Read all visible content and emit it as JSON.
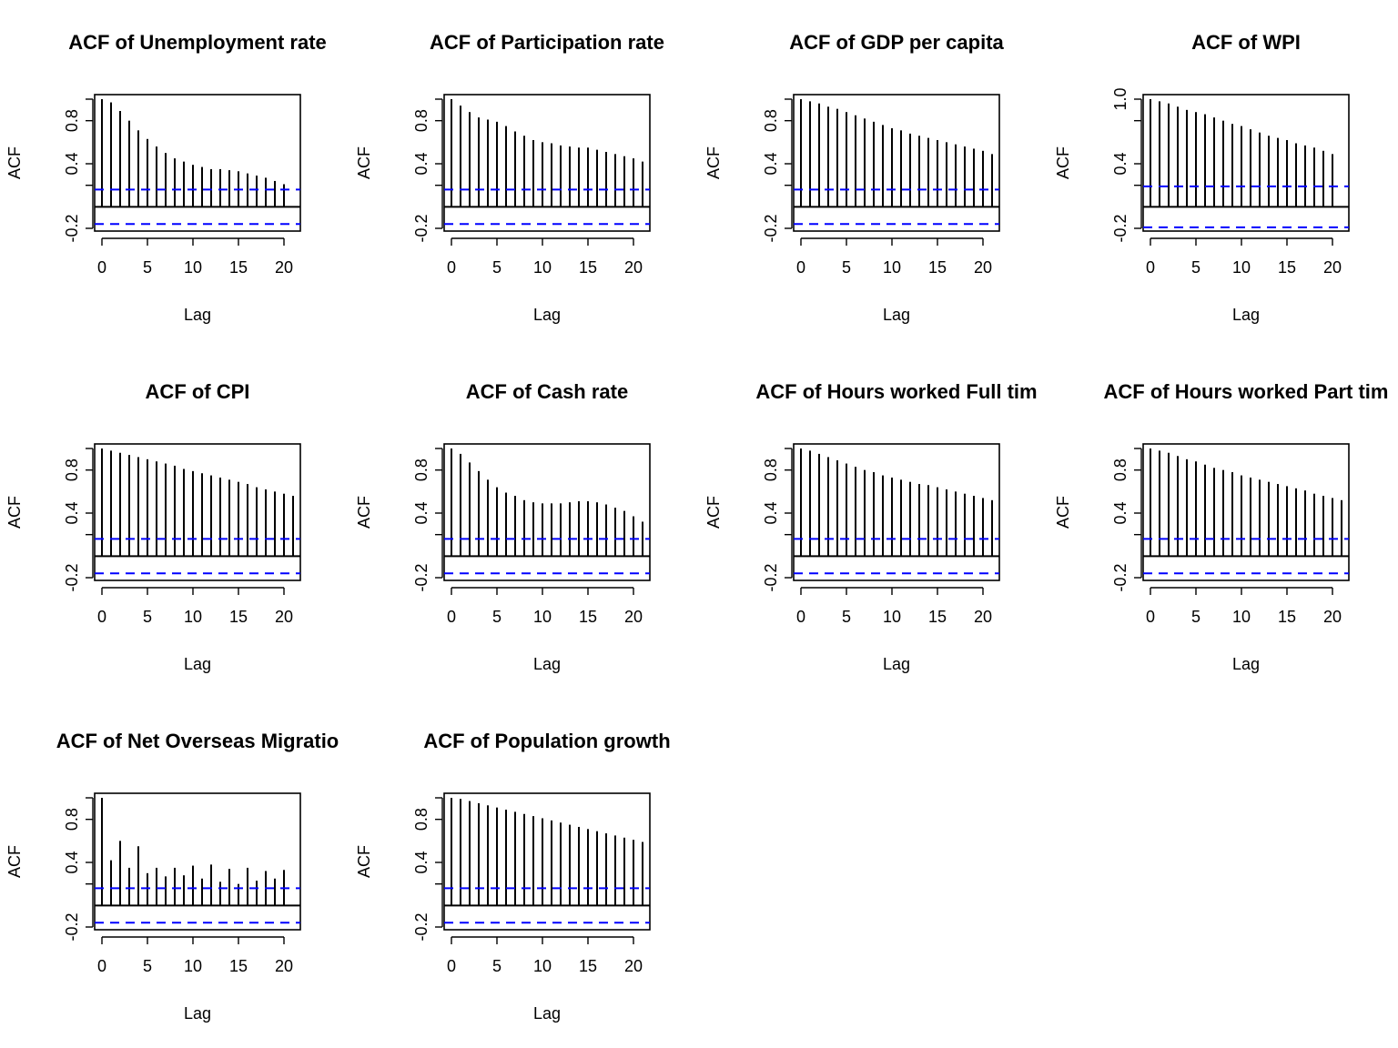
{
  "chart_data": [
    {
      "type": "bar",
      "title": "ACF of Unemployment rate",
      "xlabel": "Lag",
      "ylabel": "ACF",
      "x": [
        0,
        1,
        2,
        3,
        4,
        5,
        6,
        7,
        8,
        9,
        10,
        11,
        12,
        13,
        14,
        15,
        16,
        17,
        18,
        19,
        20
      ],
      "values": [
        1.0,
        0.97,
        0.89,
        0.8,
        0.71,
        0.63,
        0.56,
        0.5,
        0.45,
        0.42,
        0.39,
        0.37,
        0.35,
        0.35,
        0.34,
        0.33,
        0.31,
        0.29,
        0.27,
        0.24,
        0.21
      ],
      "ci": 0.16,
      "ylim": [
        -0.2,
        1.0
      ],
      "yticks": [
        "-0.2",
        "0.4",
        "0.8"
      ],
      "xticks": [
        "0",
        "5",
        "10",
        "15",
        "20"
      ]
    },
    {
      "type": "bar",
      "title": "ACF of Participation rate",
      "xlabel": "Lag",
      "ylabel": "ACF",
      "x": [
        0,
        1,
        2,
        3,
        4,
        5,
        6,
        7,
        8,
        9,
        10,
        11,
        12,
        13,
        14,
        15,
        16,
        17,
        18,
        19,
        20,
        21
      ],
      "values": [
        1.0,
        0.94,
        0.88,
        0.83,
        0.81,
        0.79,
        0.75,
        0.7,
        0.66,
        0.62,
        0.6,
        0.59,
        0.57,
        0.56,
        0.55,
        0.55,
        0.53,
        0.51,
        0.49,
        0.47,
        0.45,
        0.42
      ],
      "ci": 0.16,
      "ylim": [
        -0.2,
        1.0
      ],
      "yticks": [
        "-0.2",
        "0.4",
        "0.8"
      ],
      "xticks": [
        "0",
        "5",
        "10",
        "15",
        "20"
      ]
    },
    {
      "type": "bar",
      "title": "ACF of GDP per capita",
      "xlabel": "Lag",
      "ylabel": "ACF",
      "x": [
        0,
        1,
        2,
        3,
        4,
        5,
        6,
        7,
        8,
        9,
        10,
        11,
        12,
        13,
        14,
        15,
        16,
        17,
        18,
        19,
        20,
        21
      ],
      "values": [
        1.0,
        0.98,
        0.96,
        0.93,
        0.91,
        0.88,
        0.85,
        0.82,
        0.79,
        0.76,
        0.73,
        0.71,
        0.68,
        0.66,
        0.64,
        0.62,
        0.6,
        0.58,
        0.56,
        0.54,
        0.52,
        0.49
      ],
      "ci": 0.16,
      "ylim": [
        -0.2,
        1.0
      ],
      "yticks": [
        "-0.2",
        "0.4",
        "0.8"
      ],
      "xticks": [
        "0",
        "5",
        "10",
        "15",
        "20"
      ]
    },
    {
      "type": "bar",
      "title": "ACF of WPI",
      "xlabel": "Lag",
      "ylabel": "ACF",
      "x": [
        0,
        1,
        2,
        3,
        4,
        5,
        6,
        7,
        8,
        9,
        10,
        11,
        12,
        13,
        14,
        15,
        16,
        17,
        18,
        19,
        20
      ],
      "values": [
        1.0,
        0.98,
        0.96,
        0.93,
        0.9,
        0.88,
        0.86,
        0.83,
        0.8,
        0.77,
        0.75,
        0.72,
        0.69,
        0.66,
        0.64,
        0.62,
        0.59,
        0.57,
        0.55,
        0.52,
        0.49
      ],
      "ci": 0.19,
      "ylim": [
        -0.2,
        1.0
      ],
      "yticks": [
        "-0.2",
        "0.4",
        "1.0"
      ],
      "xticks": [
        "0",
        "5",
        "10",
        "15",
        "20"
      ]
    },
    {
      "type": "bar",
      "title": "ACF of CPI",
      "xlabel": "Lag",
      "ylabel": "ACF",
      "x": [
        0,
        1,
        2,
        3,
        4,
        5,
        6,
        7,
        8,
        9,
        10,
        11,
        12,
        13,
        14,
        15,
        16,
        17,
        18,
        19,
        20,
        21
      ],
      "values": [
        1.0,
        0.98,
        0.96,
        0.94,
        0.92,
        0.9,
        0.88,
        0.86,
        0.84,
        0.81,
        0.79,
        0.77,
        0.75,
        0.73,
        0.71,
        0.69,
        0.67,
        0.64,
        0.62,
        0.6,
        0.58,
        0.56
      ],
      "ci": 0.16,
      "ylim": [
        -0.2,
        1.0
      ],
      "yticks": [
        "-0.2",
        "0.4",
        "0.8"
      ],
      "xticks": [
        "0",
        "5",
        "10",
        "15",
        "20"
      ]
    },
    {
      "type": "bar",
      "title": "ACF of Cash rate",
      "xlabel": "Lag",
      "ylabel": "ACF",
      "x": [
        0,
        1,
        2,
        3,
        4,
        5,
        6,
        7,
        8,
        9,
        10,
        11,
        12,
        13,
        14,
        15,
        16,
        17,
        18,
        19,
        20,
        21
      ],
      "values": [
        1.0,
        0.95,
        0.87,
        0.79,
        0.71,
        0.64,
        0.59,
        0.56,
        0.52,
        0.5,
        0.49,
        0.49,
        0.49,
        0.5,
        0.51,
        0.51,
        0.5,
        0.48,
        0.45,
        0.42,
        0.37,
        0.32
      ],
      "ci": 0.16,
      "ylim": [
        -0.2,
        1.0
      ],
      "yticks": [
        "-0.2",
        "0.4",
        "0.8"
      ],
      "xticks": [
        "0",
        "5",
        "10",
        "15",
        "20"
      ]
    },
    {
      "type": "bar",
      "title": "ACF of Hours worked Full tim",
      "xlabel": "Lag",
      "ylabel": "ACF",
      "x": [
        0,
        1,
        2,
        3,
        4,
        5,
        6,
        7,
        8,
        9,
        10,
        11,
        12,
        13,
        14,
        15,
        16,
        17,
        18,
        19,
        20,
        21
      ],
      "values": [
        1.0,
        0.98,
        0.95,
        0.92,
        0.89,
        0.86,
        0.83,
        0.8,
        0.78,
        0.75,
        0.73,
        0.71,
        0.69,
        0.67,
        0.66,
        0.64,
        0.62,
        0.6,
        0.58,
        0.56,
        0.54,
        0.52
      ],
      "ci": 0.16,
      "ylim": [
        -0.2,
        1.0
      ],
      "yticks": [
        "-0.2",
        "0.4",
        "0.8"
      ],
      "xticks": [
        "0",
        "5",
        "10",
        "15",
        "20"
      ]
    },
    {
      "type": "bar",
      "title": "ACF of Hours worked Part tim",
      "xlabel": "Lag",
      "ylabel": "ACF",
      "x": [
        0,
        1,
        2,
        3,
        4,
        5,
        6,
        7,
        8,
        9,
        10,
        11,
        12,
        13,
        14,
        15,
        16,
        17,
        18,
        19,
        20,
        21
      ],
      "values": [
        1.0,
        0.98,
        0.96,
        0.93,
        0.9,
        0.88,
        0.85,
        0.82,
        0.8,
        0.78,
        0.75,
        0.73,
        0.71,
        0.69,
        0.67,
        0.65,
        0.63,
        0.61,
        0.58,
        0.56,
        0.54,
        0.52
      ],
      "ci": 0.16,
      "ylim": [
        -0.2,
        1.0
      ],
      "yticks": [
        "-0.2",
        "0.4",
        "0.8"
      ],
      "xticks": [
        "0",
        "5",
        "10",
        "15",
        "20"
      ]
    },
    {
      "type": "bar",
      "title": "ACF of Net Overseas Migratio",
      "xlabel": "Lag",
      "ylabel": "ACF",
      "x": [
        0,
        1,
        2,
        3,
        4,
        5,
        6,
        7,
        8,
        9,
        10,
        11,
        12,
        13,
        14,
        15,
        16,
        17,
        18,
        19,
        20
      ],
      "values": [
        1.0,
        0.42,
        0.6,
        0.35,
        0.55,
        0.3,
        0.35,
        0.27,
        0.35,
        0.28,
        0.37,
        0.25,
        0.38,
        0.22,
        0.34,
        0.2,
        0.35,
        0.23,
        0.32,
        0.25,
        0.33
      ],
      "ci": 0.16,
      "ylim": [
        -0.2,
        1.0
      ],
      "yticks": [
        "-0.2",
        "0.4",
        "0.8"
      ],
      "xticks": [
        "0",
        "5",
        "10",
        "15",
        "20"
      ]
    },
    {
      "type": "bar",
      "title": "ACF of Population growth",
      "xlabel": "Lag",
      "ylabel": "ACF",
      "x": [
        0,
        1,
        2,
        3,
        4,
        5,
        6,
        7,
        8,
        9,
        10,
        11,
        12,
        13,
        14,
        15,
        16,
        17,
        18,
        19,
        20,
        21
      ],
      "values": [
        1.0,
        0.99,
        0.97,
        0.95,
        0.93,
        0.91,
        0.89,
        0.87,
        0.85,
        0.83,
        0.81,
        0.79,
        0.77,
        0.75,
        0.73,
        0.71,
        0.69,
        0.67,
        0.65,
        0.63,
        0.61,
        0.59
      ],
      "ci": 0.16,
      "ylim": [
        -0.2,
        1.0
      ],
      "yticks": [
        "-0.2",
        "0.4",
        "0.8"
      ],
      "xticks": [
        "0",
        "5",
        "10",
        "15",
        "20"
      ]
    }
  ],
  "colors": {
    "ci_line": "#0000ff",
    "spike": "#000000"
  }
}
